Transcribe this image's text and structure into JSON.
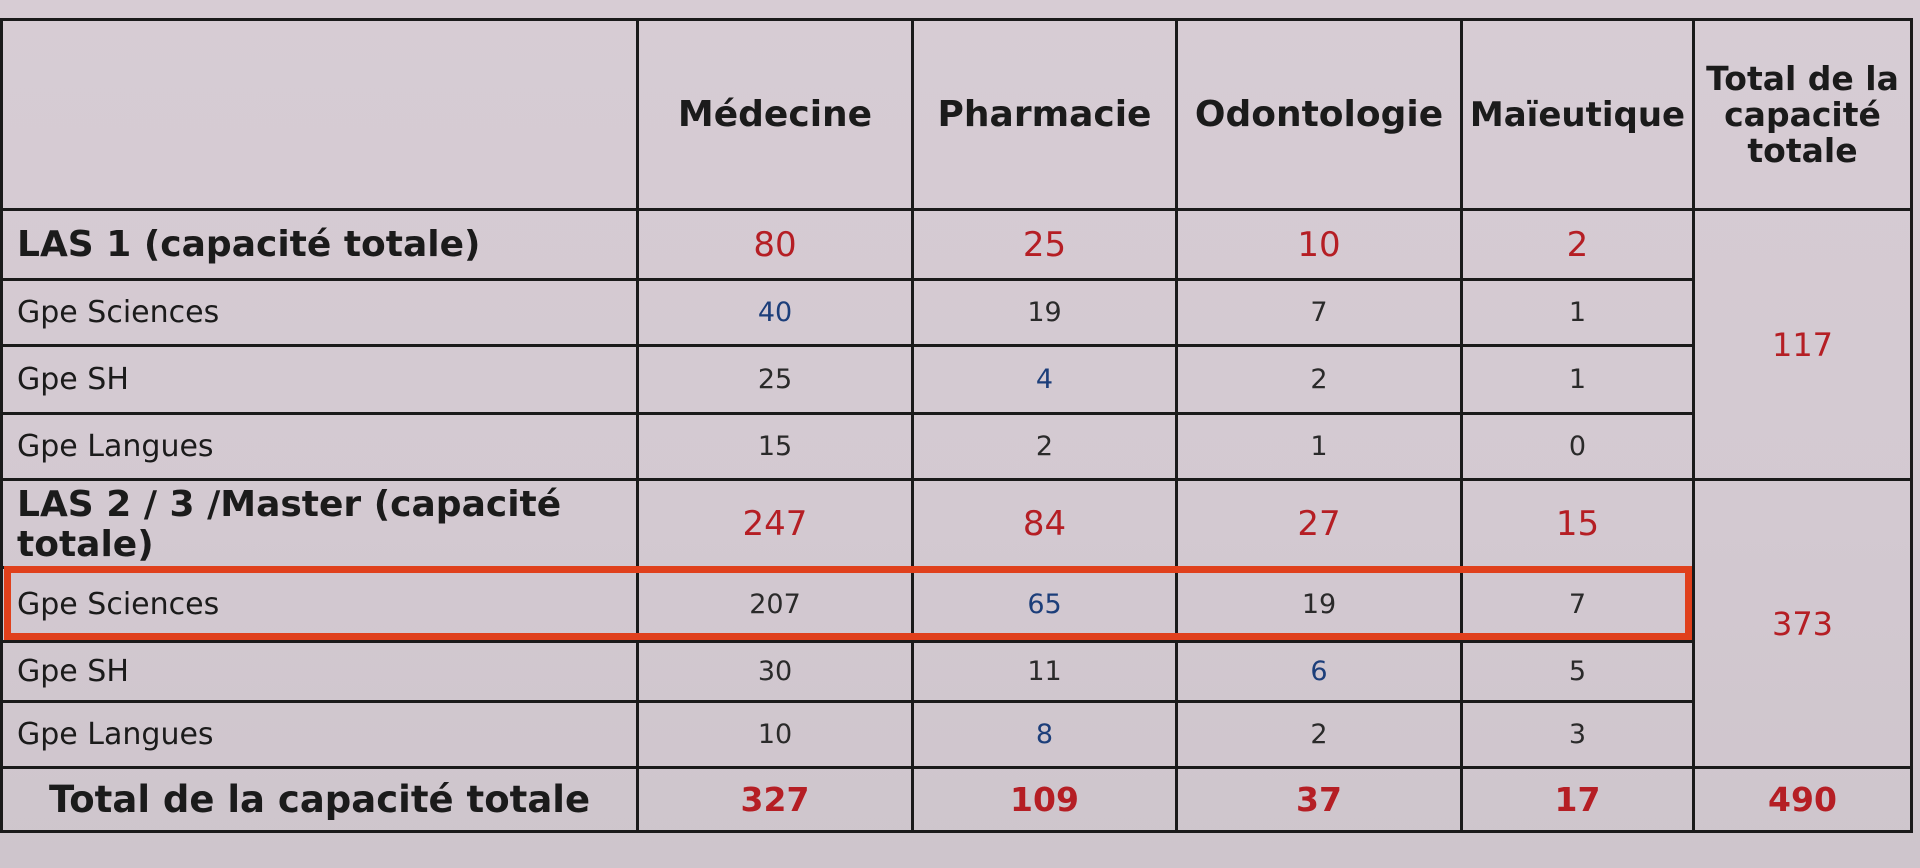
{
  "table": {
    "headers": [
      "Médecine",
      "Pharmacie",
      "Odontologie",
      "Maïeutique",
      "Total de la capacité totale"
    ],
    "rows": [
      {
        "label": "LAS 1 (capacité totale)",
        "values": [
          "80",
          "25",
          "10",
          "2"
        ]
      },
      {
        "label": "Gpe Sciences",
        "values": [
          "40",
          "19",
          "7",
          "1"
        ]
      },
      {
        "label": "Gpe SH",
        "values": [
          "25",
          "4",
          "2",
          "1"
        ]
      },
      {
        "label": "Gpe Langues",
        "values": [
          "15",
          "2",
          "1",
          "0"
        ]
      },
      {
        "label": "LAS 2 / 3 /Master (capacité totale)",
        "values": [
          "247",
          "84",
          "27",
          "15"
        ]
      },
      {
        "label": "Gpe Sciences",
        "values": [
          "207",
          "65",
          "19",
          "7"
        ]
      },
      {
        "label": "Gpe SH",
        "values": [
          "30",
          "11",
          "6",
          "5"
        ]
      },
      {
        "label": "Gpe Langues",
        "values": [
          "10",
          "8",
          "2",
          "3"
        ]
      }
    ],
    "group_totals": [
      "117",
      "373"
    ],
    "footer": {
      "label": "Total de la capacité totale",
      "values": [
        "327",
        "109",
        "37",
        "17",
        "490"
      ]
    }
  },
  "colors": {
    "highlight": "#e0401c",
    "value_red": "#b51e24",
    "value_blue": "#1c3e7a"
  }
}
